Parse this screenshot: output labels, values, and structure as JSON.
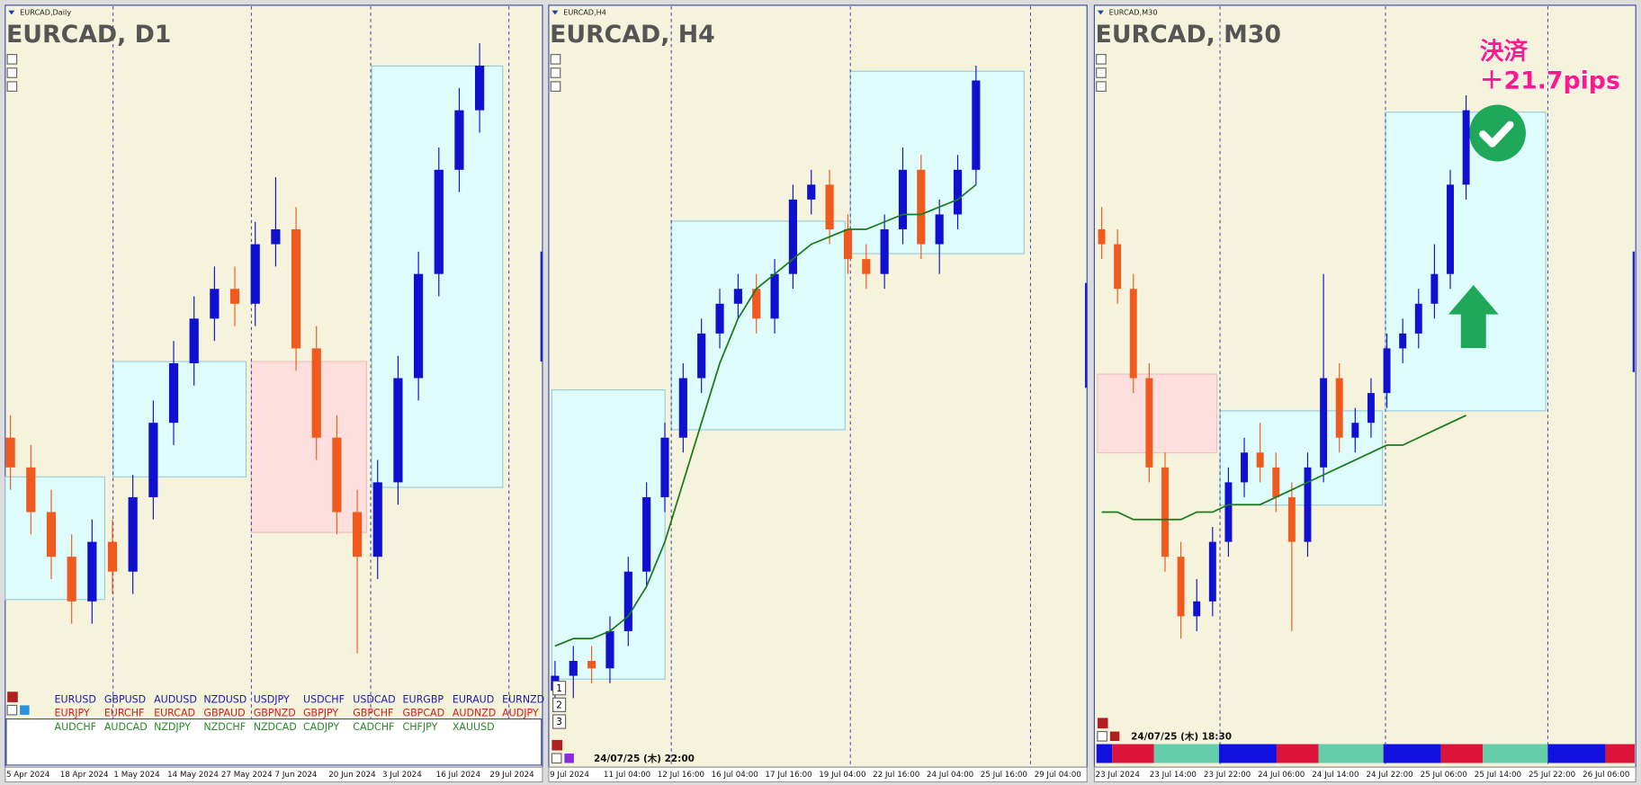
{
  "panels": [
    {
      "label": "EURCAD,Daily",
      "title": "EURCAD, D1",
      "ylim": [
        0,
        100
      ],
      "candles": [
        [
          44,
          47,
          37,
          40
        ],
        [
          40,
          43,
          31,
          34
        ],
        [
          34,
          37,
          25,
          28
        ],
        [
          28,
          31,
          19,
          22
        ],
        [
          22,
          33,
          19,
          30
        ],
        [
          30,
          33,
          23,
          26
        ],
        [
          26,
          39,
          23,
          36
        ],
        [
          36,
          49,
          33,
          46
        ],
        [
          46,
          57,
          43,
          54
        ],
        [
          54,
          63,
          51,
          60
        ],
        [
          60,
          67,
          57,
          64
        ],
        [
          64,
          67,
          59,
          62
        ],
        [
          62,
          73,
          59,
          70
        ],
        [
          70,
          79,
          67,
          72
        ],
        [
          72,
          75,
          53,
          56
        ],
        [
          56,
          59,
          41,
          44
        ],
        [
          44,
          47,
          31,
          34
        ],
        [
          34,
          37,
          15,
          28
        ],
        [
          28,
          41,
          25,
          38
        ],
        [
          38,
          55,
          35,
          52
        ],
        [
          52,
          69,
          49,
          66
        ],
        [
          66,
          83,
          63,
          80
        ],
        [
          80,
          91,
          77,
          88
        ],
        [
          88,
          97,
          85,
          94
        ]
      ],
      "dates": [
        "5 Apr 2024",
        "18 Apr 2024",
        "1 May 2024",
        "14 May 2024",
        "27 May 2024",
        "7 Jun 2024",
        "20 Jun 2024",
        "3 Jul 2024",
        "16 Jul 2024",
        "29 Jul 2024"
      ]
    },
    {
      "label": "EURCAD,H4",
      "title": "EURCAD, H4",
      "ylim": [
        0,
        100
      ],
      "candles": [
        [
          10,
          14,
          8,
          12
        ],
        [
          12,
          16,
          9,
          14
        ],
        [
          14,
          16,
          11,
          13
        ],
        [
          13,
          20,
          11,
          18
        ],
        [
          18,
          28,
          16,
          26
        ],
        [
          26,
          38,
          24,
          36
        ],
        [
          36,
          46,
          34,
          44
        ],
        [
          44,
          54,
          42,
          52
        ],
        [
          52,
          60,
          50,
          58
        ],
        [
          58,
          64,
          56,
          62
        ],
        [
          62,
          66,
          60,
          64
        ],
        [
          64,
          66,
          58,
          60
        ],
        [
          60,
          68,
          58,
          66
        ],
        [
          66,
          78,
          64,
          76
        ],
        [
          76,
          80,
          74,
          78
        ],
        [
          78,
          80,
          70,
          72
        ],
        [
          72,
          74,
          66,
          68
        ],
        [
          68,
          70,
          64,
          66
        ],
        [
          66,
          74,
          64,
          72
        ],
        [
          72,
          83,
          70,
          80
        ],
        [
          80,
          82,
          68,
          70
        ],
        [
          70,
          76,
          66,
          74
        ],
        [
          74,
          82,
          72,
          80
        ],
        [
          80,
          94,
          78,
          92
        ]
      ],
      "moving_average": [
        16,
        17,
        17,
        18,
        20,
        24,
        30,
        38,
        46,
        54,
        60,
        64,
        66,
        68,
        70,
        71,
        72,
        72,
        73,
        74,
        74,
        75,
        76,
        78
      ],
      "dates": [
        "9 Jul 2024",
        "11 Jul 04:00",
        "12 Jul 16:00",
        "16 Jul 04:00",
        "17 Jul 16:00",
        "19 Jul 04:00",
        "22 Jul 16:00",
        "24 Jul 04:00",
        "25 Jul 16:00",
        "29 Jul 04:00"
      ],
      "buttons": [
        "1",
        "2",
        "3"
      ],
      "timestamp": "24/07/25 (木) 22:00"
    },
    {
      "label": "EURCAD,M30",
      "title": "EURCAD, M30",
      "ylim": [
        0,
        100
      ],
      "candles": [
        [
          72,
          75,
          68,
          70
        ],
        [
          70,
          72,
          62,
          64
        ],
        [
          64,
          66,
          50,
          52
        ],
        [
          52,
          54,
          38,
          40
        ],
        [
          40,
          42,
          26,
          28
        ],
        [
          28,
          30,
          17,
          20
        ],
        [
          20,
          25,
          18,
          22
        ],
        [
          22,
          32,
          20,
          30
        ],
        [
          30,
          40,
          28,
          38
        ],
        [
          38,
          44,
          36,
          42
        ],
        [
          42,
          46,
          38,
          40
        ],
        [
          40,
          42,
          34,
          36
        ],
        [
          36,
          38,
          18,
          30
        ],
        [
          30,
          42,
          28,
          40
        ],
        [
          40,
          66,
          38,
          52
        ],
        [
          52,
          54,
          42,
          44
        ],
        [
          44,
          48,
          42,
          46
        ],
        [
          46,
          52,
          44,
          50
        ],
        [
          50,
          58,
          48,
          56
        ],
        [
          56,
          60,
          54,
          58
        ],
        [
          58,
          64,
          56,
          62
        ],
        [
          62,
          70,
          60,
          66
        ],
        [
          66,
          80,
          64,
          78
        ],
        [
          78,
          90,
          76,
          88
        ]
      ],
      "moving_average": [
        34,
        34,
        33,
        33,
        33,
        33,
        34,
        34,
        35,
        35,
        35,
        36,
        37,
        38,
        39,
        40,
        41,
        42,
        43,
        43,
        44,
        45,
        46,
        47
      ],
      "dates": [
        "23 Jul 2024",
        "23 Jul 14:00",
        "23 Jul 22:00",
        "24 Jul 06:00",
        "24 Jul 14:00",
        "24 Jul 22:00",
        "25 Jul 06:00",
        "25 Jul 14:00",
        "25 Jul 22:00",
        "26 Jul 06:00"
      ],
      "timestamp": "24/07/25 (木) 18:30",
      "annotation": [
        "決済",
        "＋21.7pips"
      ]
    }
  ],
  "symbols": [
    {
      "color": "#1a1ab0",
      "names": [
        "EURUSD",
        "GBPUSD",
        "AUDUSD",
        "NZDUSD",
        "USDJPY",
        "USDCHF",
        "USDCAD",
        "EURGBP",
        "EURAUD",
        "EURNZD"
      ]
    },
    {
      "color": "#d02020",
      "names": [
        "EURJPY",
        "EURCHF",
        "EURCAD",
        "GBPAUD",
        "GBPNZD",
        "GBPJPY",
        "GBPCHF",
        "GBPCAD",
        "AUDNZD",
        "AUDJPY"
      ]
    },
    {
      "color": "#2a8a2a",
      "names": [
        "AUDCHF",
        "AUDCAD",
        "NZDJPY",
        "NZDCHF",
        "NZDCAD",
        "CADJPY",
        "CADCHF",
        "CHFJPY",
        "XAUUSD"
      ]
    }
  ]
}
